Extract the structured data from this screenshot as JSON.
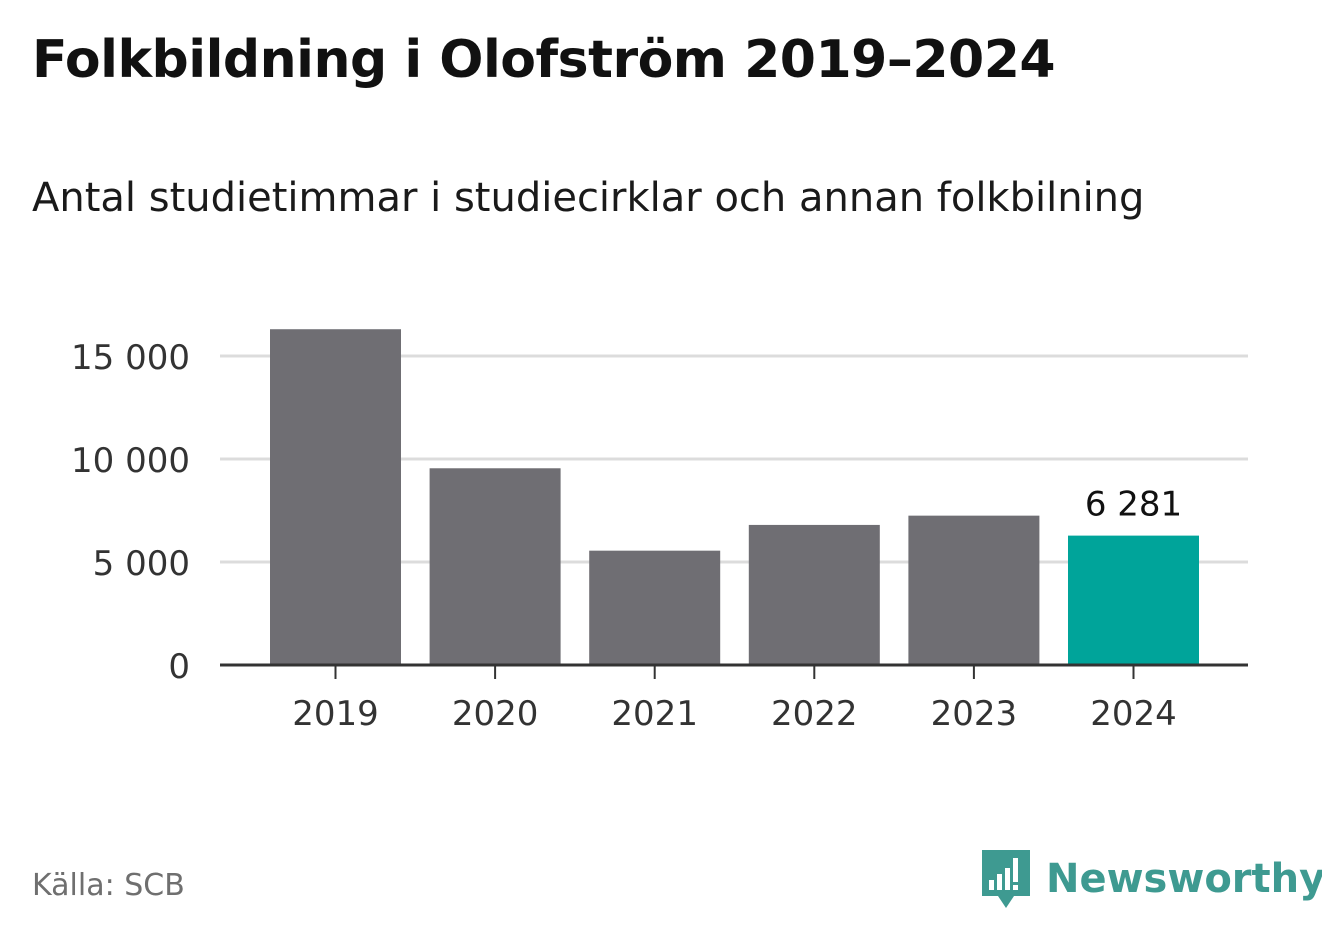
{
  "title": "Folkbildning i Olofström 2019–2024",
  "subtitle": "Antal studietimmar i studiecirklar och annan folkbilning",
  "source": "Källa: SCB",
  "brand": {
    "name": "Newsworthy",
    "icon": "newsworthy-logo-icon",
    "color": "#3e9a91"
  },
  "chart_data": {
    "type": "bar",
    "categories": [
      "2019",
      "2020",
      "2021",
      "2022",
      "2023",
      "2024"
    ],
    "values": [
      16300,
      9550,
      5550,
      6800,
      7250,
      6281
    ],
    "ylim": [
      0,
      16500
    ],
    "yticks": [
      0,
      5000,
      10000,
      15000
    ],
    "ytick_labels": [
      "0",
      "5 000",
      "10 000",
      "15 000"
    ],
    "highlight_index": 5,
    "highlight_label": "6 281",
    "grid": true,
    "colors": {
      "bar": "#6f6e73",
      "highlight": "#00a49a",
      "grid": "#dcdcdc",
      "axis": "#333333"
    }
  }
}
